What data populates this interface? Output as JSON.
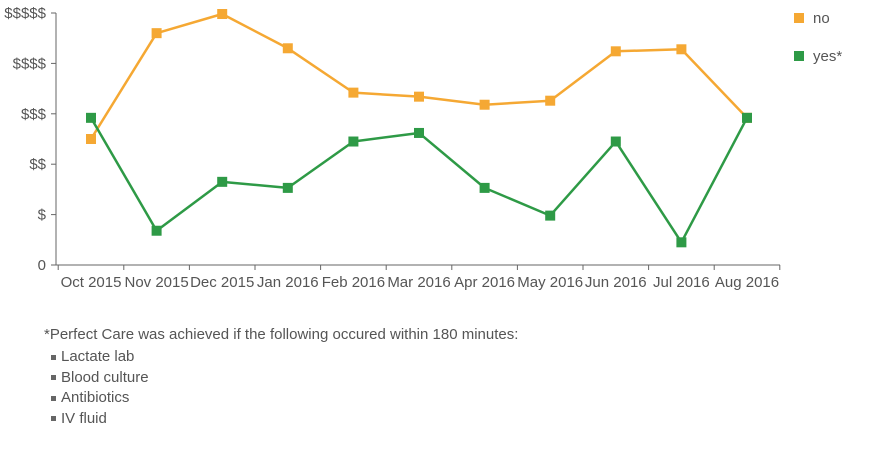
{
  "chart_data": {
    "type": "line",
    "categories": [
      "Oct 2015",
      "Nov 2015",
      "Dec 2015",
      "Jan 2016",
      "Feb 2016",
      "Mar 2016",
      "Apr 2016",
      "May 2016",
      "Jun 2016",
      "Jul 2016",
      "Aug 2016"
    ],
    "y_ticks": [
      "0",
      "$",
      "$$",
      "$$$",
      "$$$$",
      "$$$$$"
    ],
    "ylim": [
      0,
      5
    ],
    "grid": false,
    "legend_position": "top-right",
    "series": [
      {
        "name": "no",
        "color": "#F5A833",
        "values": [
          2.5,
          4.6,
          4.98,
          4.3,
          3.42,
          3.34,
          3.18,
          3.26,
          4.24,
          4.28,
          2.92
        ]
      },
      {
        "name": "yes*",
        "color": "#2E9A46",
        "values": [
          2.92,
          0.68,
          1.65,
          1.53,
          2.45,
          2.62,
          1.53,
          0.98,
          2.45,
          0.45,
          2.92
        ]
      }
    ]
  },
  "footnote": {
    "title": "*Perfect Care was achieved if the following occured within 180 minutes:",
    "items": [
      "Lactate lab",
      "Blood culture",
      "Antibiotics",
      "IV fluid"
    ]
  }
}
